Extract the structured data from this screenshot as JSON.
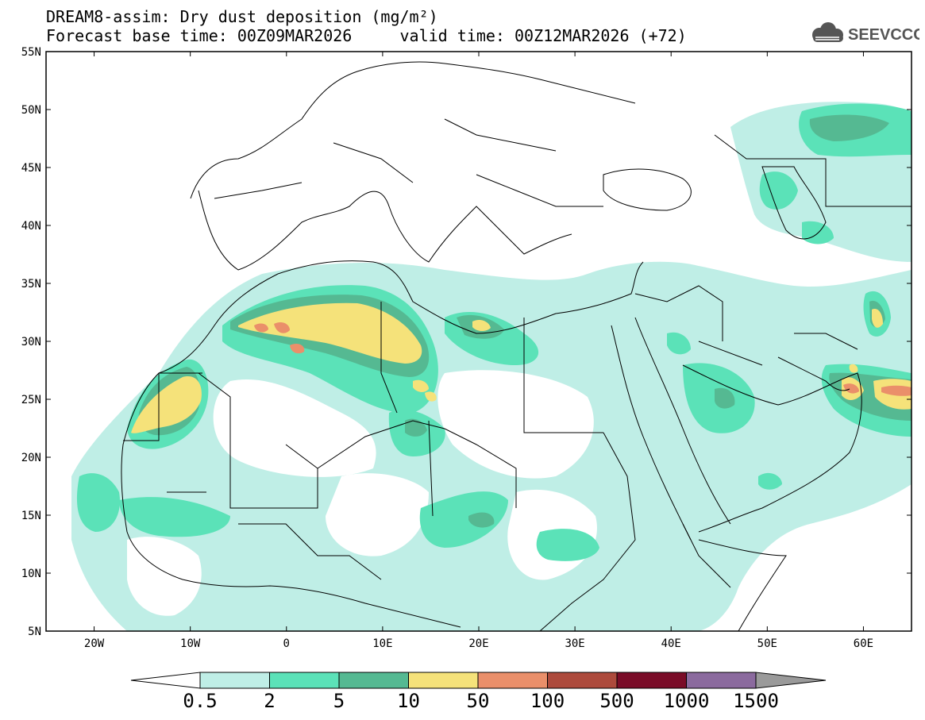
{
  "title": {
    "line1": "DREAM8-assim: Dry dust deposition (mg/m²)",
    "line2": "Forecast base time: 00Z09MAR2026     valid time: 00Z12MAR2026 (+72)"
  },
  "logo": {
    "text": "SEEVCCC",
    "icon": "cloud-icon"
  },
  "axes": {
    "lat_labels": [
      "55N",
      "50N",
      "45N",
      "40N",
      "35N",
      "30N",
      "25N",
      "20N",
      "15N",
      "10N",
      "5N"
    ],
    "lon_labels": [
      "20W",
      "10W",
      "0",
      "10E",
      "20E",
      "30E",
      "40E",
      "50E",
      "60E"
    ]
  },
  "colorbar": {
    "labels": [
      "0.5",
      "2",
      "5",
      "10",
      "50",
      "100",
      "500",
      "1000",
      "1500"
    ],
    "colors": [
      "#bfeee6",
      "#5be2b8",
      "#55b992",
      "#f5e27a",
      "#ea8f6a",
      "#ad4a3c",
      "#7a0c28",
      "#8b6a9e"
    ],
    "under_color": "#ffffff",
    "over_color": "#9a9a9a"
  }
}
